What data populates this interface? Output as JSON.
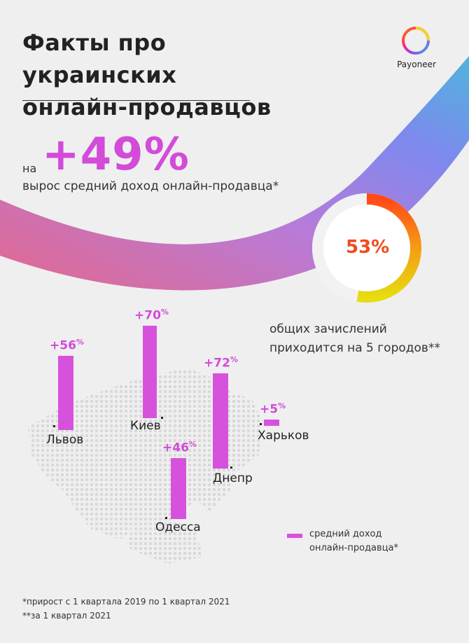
{
  "title": {
    "line1": "Факты про украинских",
    "line2": "онлайн-продавцов"
  },
  "brand": {
    "logo_text": "Payoneer",
    "colors": {
      "accent": "#d24bd9",
      "orange": "#ef4b1c"
    }
  },
  "headline_stat": {
    "prefix": "на",
    "value": "+49%",
    "description": "вырос средний доход онлайн-продавца*"
  },
  "share_stat": {
    "value": "53%",
    "fraction": 0.53,
    "line1": "общих зачислений",
    "line2": "приходится на 5 городов**"
  },
  "chart_data": {
    "type": "bar",
    "categories": [
      "Львов",
      "Киев",
      "Днепр",
      "Одесса",
      "Харьков"
    ],
    "values": [
      56,
      70,
      72,
      46,
      5
    ],
    "value_labels": [
      "+56",
      "+70",
      "+72",
      "+46",
      "+5"
    ],
    "unit": "%",
    "series": [
      {
        "name": "средний доход онлайн-продавца*",
        "values": [
          56,
          70,
          72,
          46,
          5
        ]
      }
    ]
  },
  "legend": {
    "line1": "средний доход",
    "line2": "онлайн-продавца*"
  },
  "footnotes": {
    "note1": "*прирост с 1 квартала 2019 по 1 квартал 2021",
    "note2": "**за 1 квартал 2021"
  }
}
